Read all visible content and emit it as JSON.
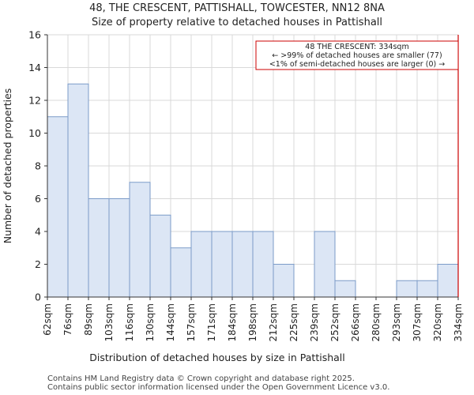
{
  "header": {
    "title_line1": "48, THE CRESCENT, PATTISHALL, TOWCESTER, NN12 8NA",
    "title_line2": "Size of property relative to detached houses in Pattishall"
  },
  "footer": {
    "line1": "Contains HM Land Registry data © Crown copyright and database right 2025.",
    "line2": "Contains public sector information licensed under the Open Government Licence v3.0."
  },
  "colors": {
    "bar_fill": "#dce6f5",
    "bar_stroke": "#7b9bc8",
    "marker": "#cc0000",
    "grid": "#d9d9d9"
  },
  "chart_data": {
    "type": "bar",
    "xlabel": "Distribution of detached houses by size in Pattishall",
    "ylabel": "Number of detached properties",
    "ylim": [
      0,
      16
    ],
    "yticks": [
      0,
      2,
      4,
      6,
      8,
      10,
      12,
      14,
      16
    ],
    "bin_edges": [
      "62sqm",
      "76sqm",
      "89sqm",
      "103sqm",
      "116sqm",
      "130sqm",
      "144sqm",
      "157sqm",
      "171sqm",
      "184sqm",
      "198sqm",
      "212sqm",
      "225sqm",
      "239sqm",
      "252sqm",
      "266sqm",
      "280sqm",
      "293sqm",
      "307sqm",
      "320sqm",
      "334sqm"
    ],
    "values": [
      11,
      13,
      6,
      6,
      7,
      5,
      3,
      4,
      4,
      4,
      4,
      2,
      0,
      4,
      1,
      0,
      0,
      1,
      1,
      2
    ],
    "marker": {
      "label": "334sqm",
      "edge_index": 20
    },
    "annotation": {
      "line1": "48 THE CRESCENT: 334sqm",
      "line2": "← >99% of detached houses are smaller (77)",
      "line3": "<1% of semi-detached houses are larger (0) →"
    }
  }
}
